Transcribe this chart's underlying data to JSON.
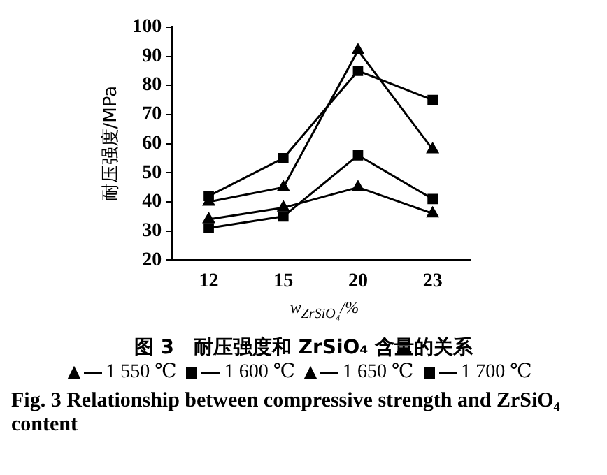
{
  "chart_data": {
    "type": "line",
    "title": "图 3　耐压强度和 ZrSiO₄ 含量的关系",
    "xlabel": "w$_{ZrSiO₄}$/%",
    "ylabel": "耐压强度/MPa",
    "categories": [
      "12",
      "15",
      "20",
      "23"
    ],
    "ylim": [
      20,
      100
    ],
    "yticks": [
      20,
      30,
      40,
      50,
      60,
      70,
      80,
      90,
      100
    ],
    "grid": false,
    "legend": "bottom",
    "line_style": "solid",
    "series": [
      {
        "name": "1 550 ℃",
        "color": "#000000",
        "marker": "triangle",
        "values": [
          34,
          38,
          45,
          36
        ]
      },
      {
        "name": "1 600 ℃",
        "color": "#000000",
        "marker": "square",
        "values": [
          31,
          35,
          56,
          41
        ]
      },
      {
        "name": "1 650 ℃",
        "color": "#000000",
        "marker": "triangle",
        "values": [
          40,
          45,
          92,
          58
        ]
      },
      {
        "name": "1 700 ℃",
        "color": "#000000",
        "marker": "square",
        "values": [
          42,
          55,
          85,
          75
        ]
      }
    ],
    "annotations": [
      "Fig. 3 Relationship between compressive strength and ZrSiO₄ content"
    ]
  }
}
